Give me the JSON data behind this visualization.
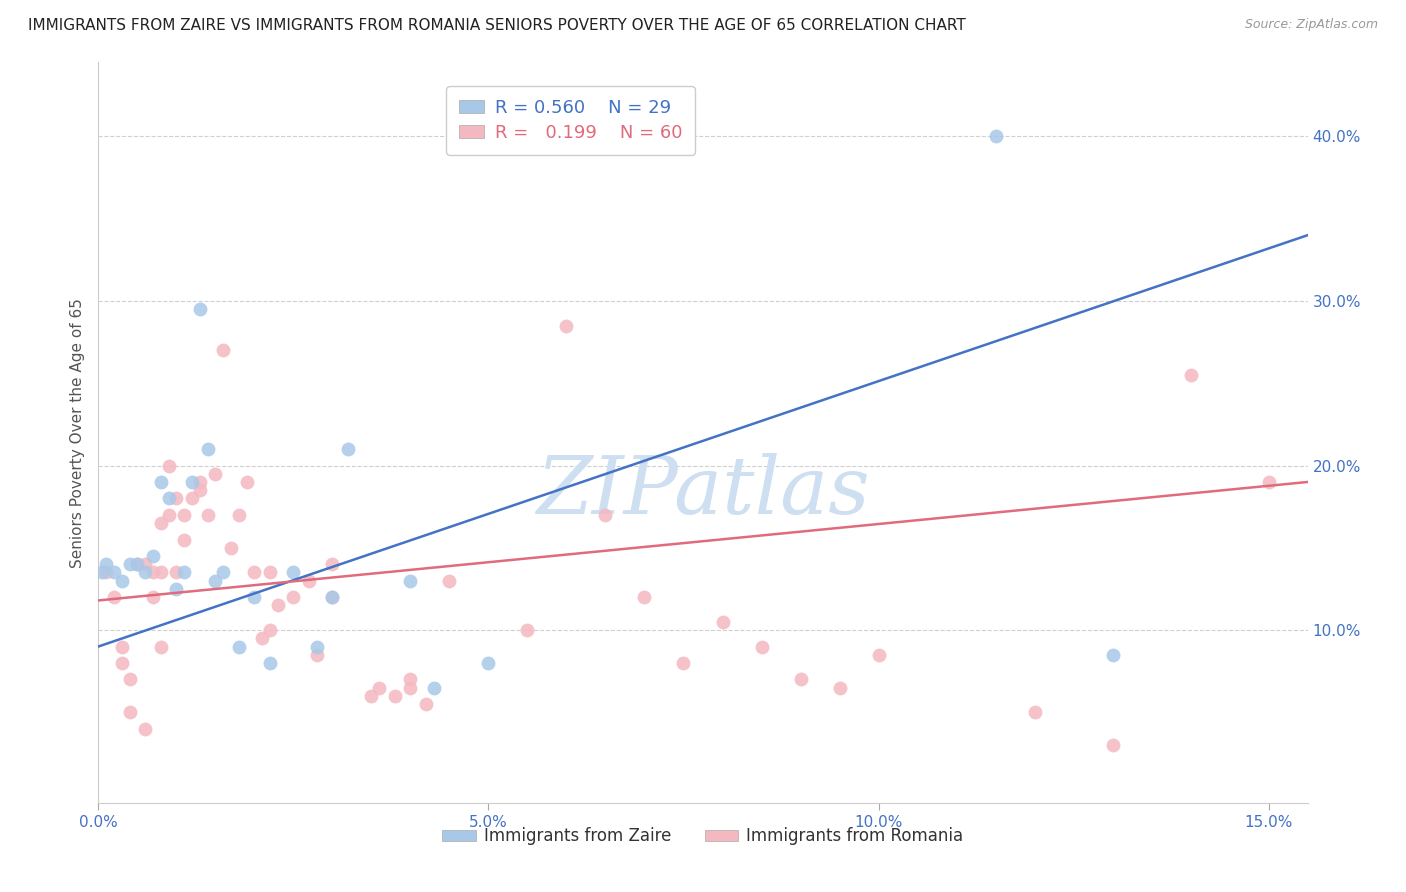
{
  "title": "IMMIGRANTS FROM ZAIRE VS IMMIGRANTS FROM ROMANIA SENIORS POVERTY OVER THE AGE OF 65 CORRELATION CHART",
  "source": "Source: ZipAtlas.com",
  "ylabel": "Seniors Poverty Over the Age of 65",
  "xlabel_zaire": "Immigrants from Zaire",
  "xlabel_romania": "Immigrants from Romania",
  "xmin": 0.0,
  "xmax": 0.155,
  "ymin": -0.005,
  "ymax": 0.445,
  "yticks": [
    0.1,
    0.2,
    0.3,
    0.4
  ],
  "ytick_labels": [
    "10.0%",
    "20.0%",
    "30.0%",
    "40.0%"
  ],
  "xticks": [
    0.0,
    0.05,
    0.1,
    0.15
  ],
  "xtick_labels": [
    "0.0%",
    "5.0%",
    "10.0%",
    "15.0%"
  ],
  "zaire_R": 0.56,
  "zaire_N": 29,
  "romania_R": 0.199,
  "romania_N": 60,
  "zaire_color": "#a8c8e8",
  "romania_color": "#f4b8c0",
  "zaire_line_color": "#4472c4",
  "romania_line_color": "#e06b7d",
  "grid_color": "#d0d0d0",
  "watermark": "ZIPatlas",
  "watermark_color": "#cddff0",
  "zaire_scatter_x": [
    0.0005,
    0.001,
    0.002,
    0.003,
    0.004,
    0.005,
    0.006,
    0.007,
    0.008,
    0.009,
    0.01,
    0.011,
    0.012,
    0.013,
    0.014,
    0.015,
    0.016,
    0.018,
    0.02,
    0.022,
    0.025,
    0.028,
    0.03,
    0.032,
    0.04,
    0.043,
    0.05,
    0.115,
    0.13
  ],
  "zaire_scatter_y": [
    0.135,
    0.14,
    0.135,
    0.13,
    0.14,
    0.14,
    0.135,
    0.145,
    0.19,
    0.18,
    0.125,
    0.135,
    0.19,
    0.295,
    0.21,
    0.13,
    0.135,
    0.09,
    0.12,
    0.08,
    0.135,
    0.09,
    0.12,
    0.21,
    0.13,
    0.065,
    0.08,
    0.4,
    0.085
  ],
  "romania_scatter_x": [
    0.001,
    0.002,
    0.003,
    0.004,
    0.005,
    0.006,
    0.007,
    0.007,
    0.008,
    0.008,
    0.009,
    0.009,
    0.01,
    0.01,
    0.011,
    0.011,
    0.012,
    0.013,
    0.013,
    0.014,
    0.015,
    0.016,
    0.017,
    0.018,
    0.019,
    0.02,
    0.021,
    0.022,
    0.022,
    0.023,
    0.025,
    0.027,
    0.028,
    0.03,
    0.03,
    0.035,
    0.036,
    0.038,
    0.04,
    0.04,
    0.042,
    0.045,
    0.055,
    0.06,
    0.065,
    0.07,
    0.075,
    0.08,
    0.085,
    0.09,
    0.095,
    0.1,
    0.12,
    0.13,
    0.14,
    0.15,
    0.003,
    0.004,
    0.006,
    0.008
  ],
  "romania_scatter_y": [
    0.135,
    0.12,
    0.09,
    0.07,
    0.14,
    0.14,
    0.135,
    0.12,
    0.165,
    0.135,
    0.2,
    0.17,
    0.135,
    0.18,
    0.155,
    0.17,
    0.18,
    0.185,
    0.19,
    0.17,
    0.195,
    0.27,
    0.15,
    0.17,
    0.19,
    0.135,
    0.095,
    0.135,
    0.1,
    0.115,
    0.12,
    0.13,
    0.085,
    0.14,
    0.12,
    0.06,
    0.065,
    0.06,
    0.065,
    0.07,
    0.055,
    0.13,
    0.1,
    0.285,
    0.17,
    0.12,
    0.08,
    0.105,
    0.09,
    0.07,
    0.065,
    0.085,
    0.05,
    0.03,
    0.255,
    0.19,
    0.08,
    0.05,
    0.04,
    0.09
  ],
  "zaire_line_x": [
    0.0,
    0.155
  ],
  "zaire_line_y": [
    0.09,
    0.34
  ],
  "romania_line_x": [
    0.0,
    0.155
  ],
  "romania_line_y": [
    0.118,
    0.19
  ],
  "title_fontsize": 11,
  "axis_label_fontsize": 11,
  "tick_fontsize": 11,
  "marker_size": 100
}
